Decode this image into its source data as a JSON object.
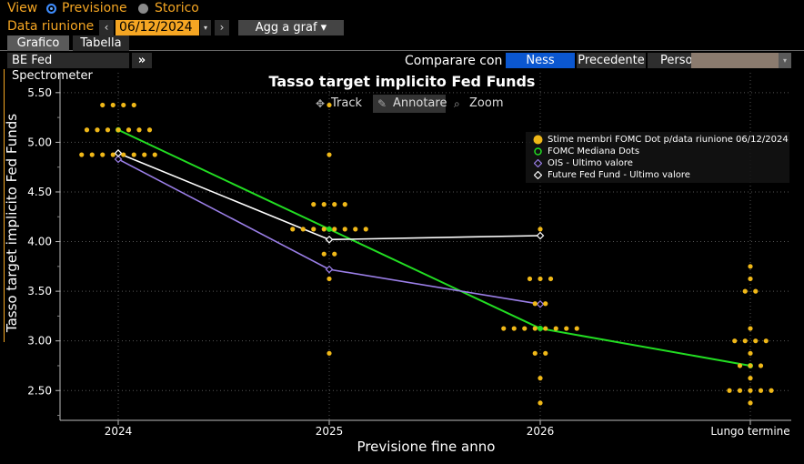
{
  "header": {
    "view_label": "View",
    "previsione_label": "Previsione",
    "storico_label": "Storico",
    "data_riunione_label": "Data riunione",
    "prev_arrow": "‹",
    "next_arrow": "›",
    "date_value": "06/12/2024",
    "dropdown_arrow": "▾",
    "add_button": "Agg a graf ▾"
  },
  "tabs": {
    "grafico": "Grafico",
    "tabella": "Tabella"
  },
  "toolbar": {
    "spectrometer": "BE Fed Spectrometer",
    "spectrometer_arrow": "»",
    "compare_label": "Comparare con",
    "ness": "Ness",
    "precedente": "Precedente",
    "pers": "Perso"
  },
  "controls": {
    "track": "Track",
    "annotate": "Annotare",
    "zoom": "Zoom"
  },
  "colors": {
    "accent": "#f5a623",
    "fomc": "#22dd22",
    "ois": "#9b7fe8",
    "futures": "#ffffff",
    "dots": "#f0b818"
  },
  "chart_data": {
    "type": "scatter",
    "title": "Tasso target implicito Fed Funds",
    "xlabel": "Previsione fine anno",
    "ylabel": "Tasso target implicito Fed Funds",
    "categories": [
      "2024",
      "2025",
      "2026",
      "Lungo termine"
    ],
    "ylim": [
      2.2,
      5.7
    ],
    "yticks": [
      "5.50",
      "5.00",
      "4.50",
      "4.00",
      "3.50",
      "3.00",
      "2.50"
    ],
    "grid": true,
    "legend_position": "top-right",
    "dot_plot": {
      "name": "Stime membri FOMC Dot p/data riunione 06/12/2024",
      "points": [
        {
          "category": "2024",
          "value": 5.375,
          "count": 4
        },
        {
          "category": "2024",
          "value": 5.125,
          "count": 7
        },
        {
          "category": "2024",
          "value": 4.875,
          "count": 8
        },
        {
          "category": "2025",
          "value": 5.375,
          "count": 1
        },
        {
          "category": "2025",
          "value": 4.875,
          "count": 1
        },
        {
          "category": "2025",
          "value": 4.375,
          "count": 4
        },
        {
          "category": "2025",
          "value": 4.125,
          "count": 8
        },
        {
          "category": "2025",
          "value": 3.875,
          "count": 2
        },
        {
          "category": "2025",
          "value": 3.625,
          "count": 1
        },
        {
          "category": "2025",
          "value": 2.875,
          "count": 1
        },
        {
          "category": "2026",
          "value": 4.125,
          "count": 1
        },
        {
          "category": "2026",
          "value": 3.625,
          "count": 3
        },
        {
          "category": "2026",
          "value": 3.375,
          "count": 2
        },
        {
          "category": "2026",
          "value": 3.125,
          "count": 8
        },
        {
          "category": "2026",
          "value": 2.875,
          "count": 2
        },
        {
          "category": "2026",
          "value": 2.625,
          "count": 1
        },
        {
          "category": "2026",
          "value": 2.375,
          "count": 1
        },
        {
          "category": "Lungo termine",
          "value": 3.75,
          "count": 1
        },
        {
          "category": "Lungo termine",
          "value": 3.625,
          "count": 1
        },
        {
          "category": "Lungo termine",
          "value": 3.5,
          "count": 2
        },
        {
          "category": "Lungo termine",
          "value": 3.125,
          "count": 1
        },
        {
          "category": "Lungo termine",
          "value": 3.0,
          "count": 4
        },
        {
          "category": "Lungo termine",
          "value": 2.875,
          "count": 1
        },
        {
          "category": "Lungo termine",
          "value": 2.75,
          "count": 3
        },
        {
          "category": "Lungo termine",
          "value": 2.625,
          "count": 1
        },
        {
          "category": "Lungo termine",
          "value": 2.5,
          "count": 5
        },
        {
          "category": "Lungo termine",
          "value": 2.375,
          "count": 1
        }
      ]
    },
    "series": [
      {
        "name": "FOMC Mediana Dots",
        "values": [
          5.125,
          4.125,
          3.125,
          2.75
        ]
      },
      {
        "name": "OIS - Ultimo valore",
        "values": [
          4.83,
          3.72,
          3.37,
          null
        ]
      },
      {
        "name": "Future Fed Fund - Ultimo valore",
        "values": [
          4.89,
          4.02,
          4.06,
          null
        ]
      }
    ]
  }
}
